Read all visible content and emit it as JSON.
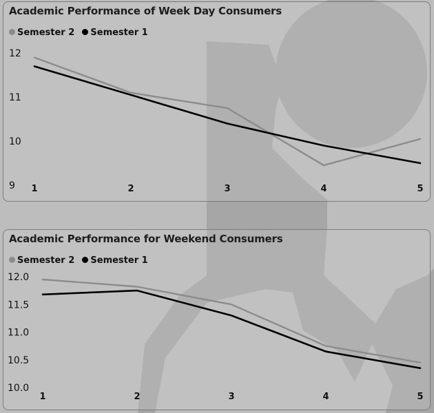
{
  "colors": {
    "semester_2": "#8c8c8c",
    "semester_1": "#000000"
  },
  "chart_data": [
    {
      "type": "line",
      "title": "Academic Performance of Week Day Consumers",
      "x": [
        1,
        2,
        3,
        4,
        5
      ],
      "x_tick_labels": [
        "1",
        "2",
        "3",
        "4",
        "5"
      ],
      "y_tick_labels": [
        "9",
        "10",
        "11",
        "12"
      ],
      "ylim": [
        9,
        12.3
      ],
      "legend": "top-left",
      "grid": false,
      "series": [
        {
          "name": "Semester 2",
          "color": "#8c8c8c",
          "values": [
            11.9,
            11.1,
            10.75,
            9.45,
            10.05
          ]
        },
        {
          "name": "Semester 1",
          "color": "#000000",
          "values": [
            11.7,
            11.05,
            10.4,
            9.9,
            9.5
          ]
        }
      ]
    },
    {
      "type": "line",
      "title": "Academic Performance for Weekend Consumers",
      "x": [
        1,
        2,
        3,
        4,
        5
      ],
      "x_tick_labels": [
        "1",
        "2",
        "3",
        "4",
        "5"
      ],
      "y_tick_labels": [
        "10.0",
        "10.5",
        "11.0",
        "11.5",
        "12.0"
      ],
      "ylim": [
        10,
        12.05
      ],
      "legend": "top-left",
      "grid": false,
      "series": [
        {
          "name": "Semester 2",
          "color": "#8c8c8c",
          "values": [
            11.95,
            11.82,
            11.5,
            10.75,
            10.45
          ]
        },
        {
          "name": "Semester 1",
          "color": "#000000",
          "values": [
            11.68,
            11.75,
            11.3,
            10.65,
            10.35
          ]
        }
      ]
    }
  ]
}
